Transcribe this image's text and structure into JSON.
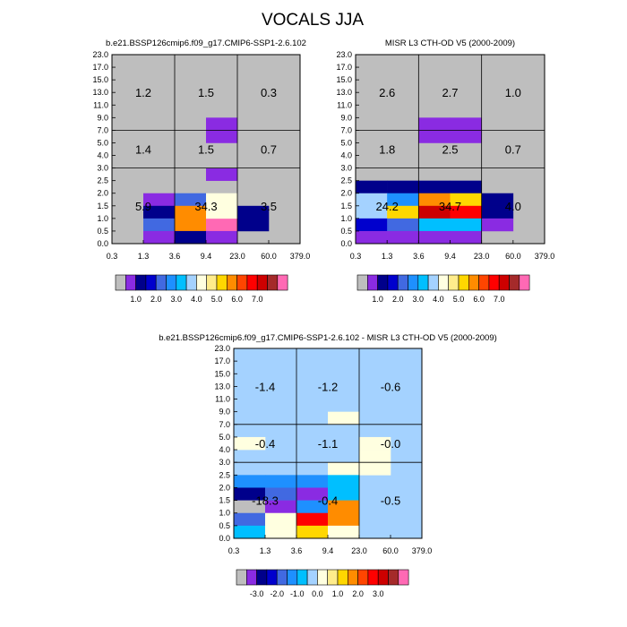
{
  "figure_title": "VOCALS JJA",
  "colors": {
    "background_gray": "#bebebe",
    "palette": [
      "#bebebe",
      "#8a2be2",
      "#00008b",
      "#0000cd",
      "#4169e1",
      "#1e90ff",
      "#00bfff",
      "#a4d2ff",
      "#ffffe0",
      "#ffec8b",
      "#ffd700",
      "#ff8c00",
      "#ff4500",
      "#ff0000",
      "#cd0000",
      "#a52a2a",
      "#ff69b4"
    ]
  },
  "chart_data": [
    {
      "type": "heatmap",
      "title": "b.e21.BSSP126cmip6.f09_g17.CMIP6-SSP1-2.6.102",
      "xlabel": "",
      "ylabel": "",
      "x_ticks": [
        "0.3",
        "1.3",
        "3.6",
        "9.4",
        "23.0",
        "60.0",
        "379.0"
      ],
      "y_ticks": [
        "0.0",
        "0.5",
        "1.0",
        "1.5",
        "2.0",
        "2.5",
        "3.0",
        "4.0",
        "5.0",
        "7.0",
        "9.0",
        "11.0",
        "13.0",
        "15.0",
        "17.0",
        "23.0"
      ],
      "group_values": [
        {
          "label": "1.2",
          "x_col": 0,
          "y_row": 2
        },
        {
          "label": "1.5",
          "x_col": 1,
          "y_row": 2
        },
        {
          "label": "0.3",
          "x_col": 2,
          "y_row": 2
        },
        {
          "label": "1.4",
          "x_col": 0,
          "y_row": 1
        },
        {
          "label": "1.5",
          "x_col": 1,
          "y_row": 1
        },
        {
          "label": "0.7",
          "x_col": 2,
          "y_row": 1
        },
        {
          "label": "5.9",
          "x_col": 0,
          "y_row": 0
        },
        {
          "label": "34.3",
          "x_col": 1,
          "y_row": 0
        },
        {
          "label": "3.5",
          "x_col": 2,
          "y_row": 0
        }
      ],
      "cells": [
        {
          "xi": 3,
          "yi": 8,
          "c": 1
        },
        {
          "xi": 3,
          "yi": 9,
          "c": 1
        },
        {
          "xi": 3,
          "yi": 5,
          "c": 1
        },
        {
          "xi": 1,
          "yi": 3,
          "c": 1
        },
        {
          "xi": 2,
          "yi": 3,
          "c": 4
        },
        {
          "xi": 3,
          "yi": 3,
          "c": 8
        },
        {
          "xi": 1,
          "yi": 2,
          "c": 2
        },
        {
          "xi": 2,
          "yi": 2,
          "c": 11
        },
        {
          "xi": 3,
          "yi": 2,
          "c": 8
        },
        {
          "xi": 4,
          "yi": 2,
          "c": 2
        },
        {
          "xi": 1,
          "yi": 1,
          "c": 4
        },
        {
          "xi": 2,
          "yi": 1,
          "c": 11
        },
        {
          "xi": 3,
          "yi": 1,
          "c": 16
        },
        {
          "xi": 4,
          "yi": 1,
          "c": 2
        },
        {
          "xi": 3,
          "yi": 2,
          "c": 8
        },
        {
          "xi": 2,
          "yi": 0,
          "c": 2
        },
        {
          "xi": 1,
          "yi": 0,
          "c": 1
        },
        {
          "xi": 3,
          "yi": 0,
          "c": 1
        }
      ],
      "colorbar_labels": [
        "1.0",
        "2.0",
        "3.0",
        "4.0",
        "5.0",
        "6.0",
        "7.0"
      ]
    },
    {
      "type": "heatmap",
      "title": "MISR L3 CTH-OD V5 (2000-2009)",
      "xlabel": "",
      "ylabel": "",
      "x_ticks": [
        "0.3",
        "1.3",
        "3.6",
        "9.4",
        "23.0",
        "60.0",
        "379.0"
      ],
      "y_ticks": [
        "0.0",
        "0.5",
        "1.0",
        "1.5",
        "2.0",
        "2.5",
        "3.0",
        "4.0",
        "5.0",
        "7.0",
        "9.0",
        "11.0",
        "13.0",
        "15.0",
        "17.0",
        "23.0"
      ],
      "group_values": [
        {
          "label": "2.6",
          "x_col": 0,
          "y_row": 2
        },
        {
          "label": "2.7",
          "x_col": 1,
          "y_row": 2
        },
        {
          "label": "1.0",
          "x_col": 2,
          "y_row": 2
        },
        {
          "label": "1.8",
          "x_col": 0,
          "y_row": 1
        },
        {
          "label": "2.5",
          "x_col": 1,
          "y_row": 1
        },
        {
          "label": "0.7",
          "x_col": 2,
          "y_row": 1
        },
        {
          "label": "24.2",
          "x_col": 0,
          "y_row": 0
        },
        {
          "label": "34.7",
          "x_col": 1,
          "y_row": 0
        },
        {
          "label": "4.0",
          "x_col": 2,
          "y_row": 0
        }
      ],
      "cells": [
        {
          "xi": 2,
          "yi": 8,
          "c": 1
        },
        {
          "xi": 3,
          "yi": 8,
          "c": 1
        },
        {
          "xi": 2,
          "yi": 9,
          "c": 1
        },
        {
          "xi": 3,
          "yi": 9,
          "c": 1
        },
        {
          "xi": 0,
          "yi": 4,
          "c": 2
        },
        {
          "xi": 1,
          "yi": 4,
          "c": 2
        },
        {
          "xi": 2,
          "yi": 4,
          "c": 2
        },
        {
          "xi": 3,
          "yi": 4,
          "c": 2
        },
        {
          "xi": 0,
          "yi": 3,
          "c": 7
        },
        {
          "xi": 1,
          "yi": 3,
          "c": 5
        },
        {
          "xi": 2,
          "yi": 3,
          "c": 11
        },
        {
          "xi": 3,
          "yi": 3,
          "c": 10
        },
        {
          "xi": 4,
          "yi": 3,
          "c": 2
        },
        {
          "xi": 0,
          "yi": 2,
          "c": 7
        },
        {
          "xi": 1,
          "yi": 2,
          "c": 10
        },
        {
          "xi": 2,
          "yi": 2,
          "c": 14
        },
        {
          "xi": 3,
          "yi": 2,
          "c": 13
        },
        {
          "xi": 4,
          "yi": 2,
          "c": 2
        },
        {
          "xi": 0,
          "yi": 1,
          "c": 3
        },
        {
          "xi": 1,
          "yi": 1,
          "c": 4
        },
        {
          "xi": 2,
          "yi": 1,
          "c": 6
        },
        {
          "xi": 3,
          "yi": 1,
          "c": 6
        },
        {
          "xi": 4,
          "yi": 1,
          "c": 1
        },
        {
          "xi": 0,
          "yi": 0,
          "c": 1
        },
        {
          "xi": 1,
          "yi": 0,
          "c": 1
        },
        {
          "xi": 2,
          "yi": 0,
          "c": 1
        },
        {
          "xi": 3,
          "yi": 0,
          "c": 1
        }
      ],
      "colorbar_labels": [
        "1.0",
        "2.0",
        "3.0",
        "4.0",
        "5.0",
        "6.0",
        "7.0"
      ]
    },
    {
      "type": "heatmap",
      "title": "b.e21.BSSP126cmip6.f09_g17.CMIP6-SSP1-2.6.102 - MISR L3 CTH-OD V5 (2000-2009)",
      "xlabel": "",
      "ylabel": "",
      "x_ticks": [
        "0.3",
        "1.3",
        "3.6",
        "9.4",
        "23.0",
        "60.0",
        "379.0"
      ],
      "y_ticks": [
        "0.0",
        "0.5",
        "1.0",
        "1.5",
        "2.0",
        "2.5",
        "3.0",
        "4.0",
        "5.0",
        "7.0",
        "9.0",
        "11.0",
        "13.0",
        "15.0",
        "17.0",
        "23.0"
      ],
      "group_values": [
        {
          "label": "-1.4",
          "x_col": 0,
          "y_row": 2
        },
        {
          "label": "-1.2",
          "x_col": 1,
          "y_row": 2
        },
        {
          "label": "-0.6",
          "x_col": 2,
          "y_row": 2
        },
        {
          "label": "-0.4",
          "x_col": 0,
          "y_row": 1
        },
        {
          "label": "-1.1",
          "x_col": 1,
          "y_row": 1
        },
        {
          "label": "-0.0",
          "x_col": 2,
          "y_row": 1
        },
        {
          "label": "-18.3",
          "x_col": 0,
          "y_row": 0
        },
        {
          "label": "-0.4",
          "x_col": 1,
          "y_row": 0
        },
        {
          "label": "-0.5",
          "x_col": 2,
          "y_row": 0
        }
      ],
      "cells": [
        {
          "xi": 3,
          "yi": 9,
          "c": 8
        },
        {
          "xi": 0,
          "yi": 7,
          "c": 8
        },
        {
          "xi": 4,
          "yi": 7,
          "c": 8
        },
        {
          "xi": 4,
          "yi": 6,
          "c": 8
        },
        {
          "xi": 4,
          "yi": 5,
          "c": 8
        },
        {
          "xi": 3,
          "yi": 5,
          "c": 8
        },
        {
          "xi": 0,
          "yi": 4,
          "c": 5
        },
        {
          "xi": 1,
          "yi": 4,
          "c": 5
        },
        {
          "xi": 2,
          "yi": 4,
          "c": 5
        },
        {
          "xi": 3,
          "yi": 4,
          "c": 6
        },
        {
          "xi": 0,
          "yi": 3,
          "c": 2
        },
        {
          "xi": 1,
          "yi": 3,
          "c": 4
        },
        {
          "xi": 2,
          "yi": 3,
          "c": 1
        },
        {
          "xi": 3,
          "yi": 3,
          "c": 6
        },
        {
          "xi": 0,
          "yi": 2,
          "c": 0
        },
        {
          "xi": 1,
          "yi": 2,
          "c": 1
        },
        {
          "xi": 2,
          "yi": 2,
          "c": 5
        },
        {
          "xi": 3,
          "yi": 2,
          "c": 11
        },
        {
          "xi": 0,
          "yi": 1,
          "c": 4
        },
        {
          "xi": 1,
          "yi": 1,
          "c": 8
        },
        {
          "xi": 2,
          "yi": 1,
          "c": 13
        },
        {
          "xi": 3,
          "yi": 1,
          "c": 11
        },
        {
          "xi": 0,
          "yi": 0,
          "c": 6
        },
        {
          "xi": 1,
          "yi": 0,
          "c": 8
        },
        {
          "xi": 2,
          "yi": 0,
          "c": 10
        },
        {
          "xi": 3,
          "yi": 0,
          "c": 8
        }
      ],
      "base_color": 7,
      "colorbar_labels": [
        "-3.0",
        "-2.0",
        "-1.0",
        "0.0",
        "1.0",
        "2.0",
        "3.0"
      ]
    }
  ]
}
